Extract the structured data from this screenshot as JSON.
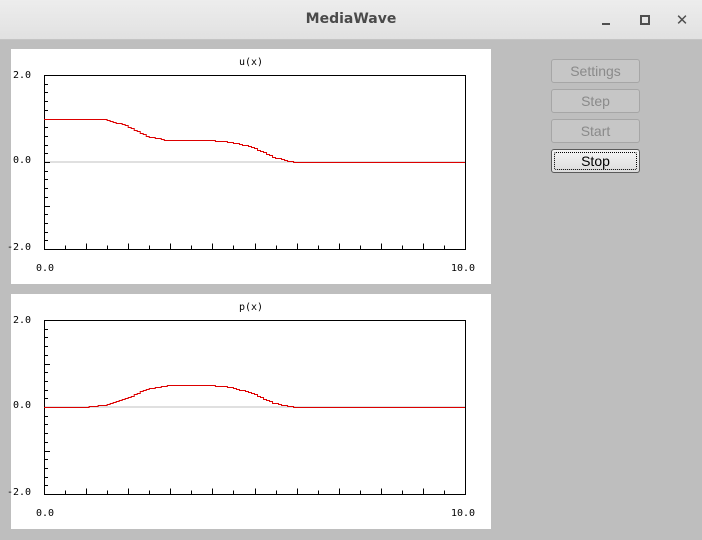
{
  "window": {
    "title": "MediaWave",
    "controls": {
      "minimize_icon": "minimize-icon",
      "maximize_icon": "maximize-icon",
      "close_icon": "close-icon"
    }
  },
  "buttons": {
    "settings": {
      "label": "Settings",
      "enabled": false
    },
    "step": {
      "label": "Step",
      "enabled": false
    },
    "start": {
      "label": "Start",
      "enabled": false
    },
    "stop": {
      "label": "Stop",
      "enabled": true,
      "focused": true
    }
  },
  "chart_data": [
    {
      "type": "line",
      "title": "u(x)",
      "xlim": [
        0.0,
        10.0
      ],
      "ylim": [
        -2.0,
        2.0
      ],
      "xtick_labels": [
        "0.0",
        "10.0"
      ],
      "ytick_labels": [
        "2.0",
        "0.0",
        "-2.0"
      ],
      "series_color": "#dd0000",
      "zero_line_color": "#c0c0c0",
      "series": [
        {
          "x": [
            0.0,
            1.0,
            1.5,
            2.0,
            2.5,
            3.0,
            4.0,
            4.5,
            5.0,
            5.5,
            6.0,
            10.0
          ],
          "values": [
            1.0,
            1.0,
            0.98,
            0.85,
            0.6,
            0.5,
            0.5,
            0.46,
            0.35,
            0.12,
            0.0,
            0.0
          ]
        }
      ]
    },
    {
      "type": "line",
      "title": "p(x)",
      "xlim": [
        0.0,
        10.0
      ],
      "ylim": [
        -2.0,
        2.0
      ],
      "xtick_labels": [
        "0.0",
        "10.0"
      ],
      "ytick_labels": [
        "2.0",
        "0.0",
        "-2.0"
      ],
      "series_color": "#dd0000",
      "zero_line_color": "#c0c0c0",
      "series": [
        {
          "x": [
            0.0,
            1.0,
            1.5,
            2.0,
            2.5,
            3.0,
            4.0,
            4.5,
            5.0,
            5.5,
            6.0,
            10.0
          ],
          "values": [
            0.0,
            0.0,
            0.05,
            0.2,
            0.42,
            0.5,
            0.5,
            0.46,
            0.32,
            0.1,
            0.0,
            0.0
          ]
        }
      ]
    }
  ]
}
